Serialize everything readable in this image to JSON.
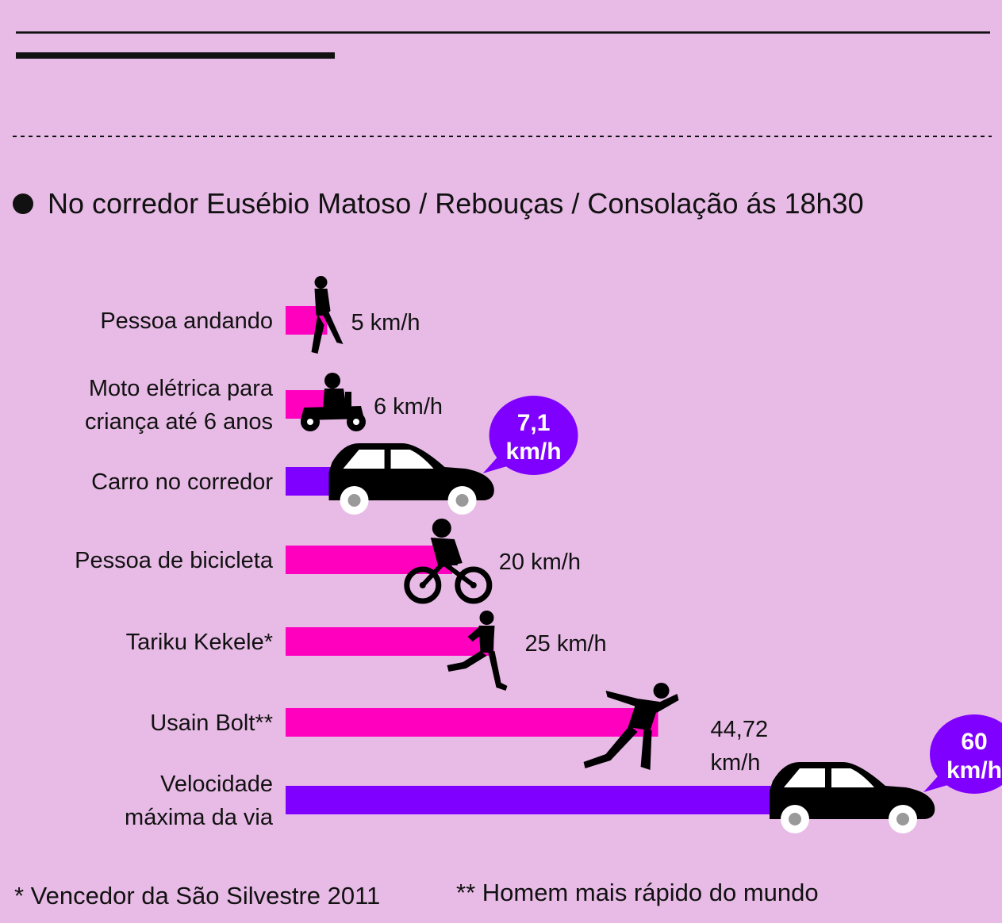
{
  "subtitle": "No corredor Eusébio Matoso / Rebouças / Consolação ás 18h30",
  "colors": {
    "background": "#e8bbe6",
    "pink": "#ff00bf",
    "purple": "#8000ff",
    "text": "#111111"
  },
  "chart_data": {
    "type": "bar",
    "orientation": "horizontal",
    "unit": "km/h",
    "categories": [
      "Pessoa andando",
      "Moto elétrica para criança até 6 anos",
      "Carro no corredor",
      "Pessoa de bicicleta",
      "Tariku Kekele*",
      "Usain Bolt**",
      "Velocidade máxima da via"
    ],
    "category_lines": [
      [
        "Pessoa andando"
      ],
      [
        "Moto elétrica para",
        "criança até 6 anos"
      ],
      [
        "Carro no corredor"
      ],
      [
        "Pessoa de bicicleta"
      ],
      [
        "Tariku Kekele*"
      ],
      [
        "Usain Bolt**"
      ],
      [
        "Velocidade",
        "máxima da via"
      ]
    ],
    "values": [
      5,
      6,
      7.1,
      20,
      25,
      44.72,
      60
    ],
    "data_labels": [
      [
        "5 km/h"
      ],
      [
        "6 km/h"
      ],
      [
        "7,1",
        "km/h"
      ],
      [
        "20 km/h"
      ],
      [
        "25 km/h"
      ],
      [
        "44,72",
        "km/h"
      ],
      [
        "60",
        "km/h"
      ]
    ],
    "label_style": [
      "plain",
      "plain",
      "bubble",
      "plain",
      "plain",
      "plain",
      "bubble"
    ],
    "bar_colors": [
      "#ff00bf",
      "#ff00bf",
      "#8000ff",
      "#ff00bf",
      "#ff00bf",
      "#ff00bf",
      "#8000ff"
    ],
    "icons": [
      "walking-person-icon",
      "kids-motorbike-icon",
      "car-icon",
      "cyclist-icon",
      "runner-icon",
      "sprinter-icon",
      "car-icon"
    ],
    "xlim": [
      0,
      60
    ]
  },
  "footnotes": {
    "left": "* Vencedor da São Silvestre 2011",
    "right": "** Homem mais rápido do mundo"
  }
}
